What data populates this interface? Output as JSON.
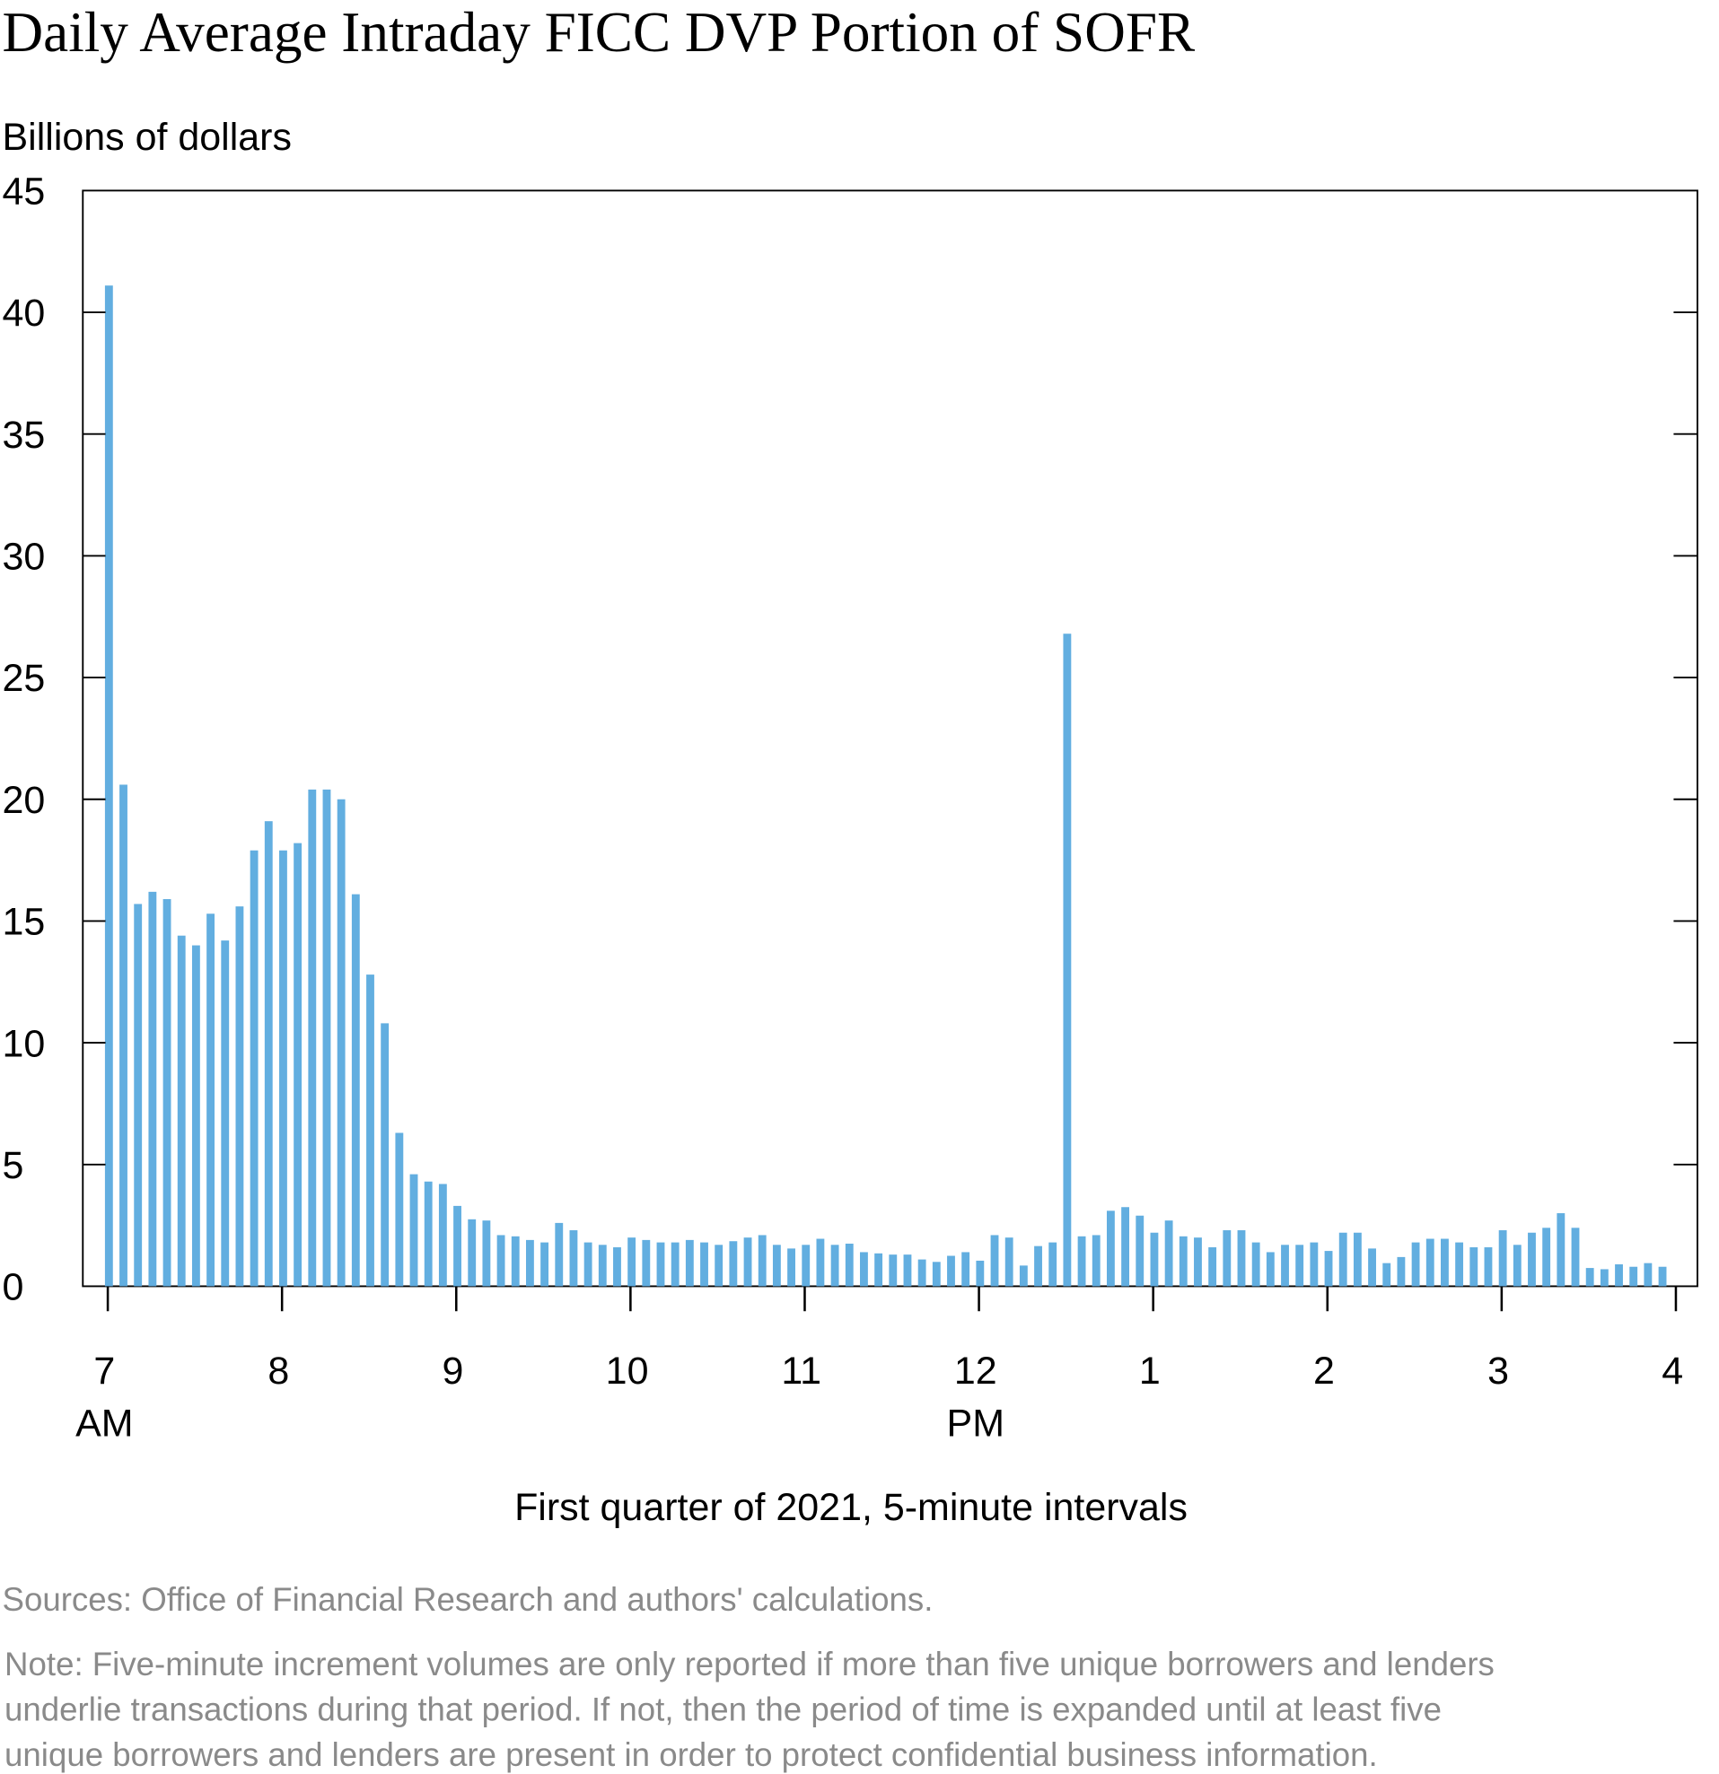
{
  "chart_data": {
    "type": "bar",
    "title": "Daily Average Intraday FICC DVP Portion of SOFR",
    "ylabel": "Billions of dollars",
    "xlabel": "First quarter of 2021, 5-minute intervals",
    "ylim": [
      0,
      45
    ],
    "yticks": [
      0,
      5,
      10,
      15,
      20,
      25,
      30,
      35,
      40,
      45
    ],
    "xticks": [
      {
        "label": "7",
        "sublabel": "AM"
      },
      {
        "label": "8",
        "sublabel": ""
      },
      {
        "label": "9",
        "sublabel": ""
      },
      {
        "label": "10",
        "sublabel": ""
      },
      {
        "label": "11",
        "sublabel": ""
      },
      {
        "label": "12",
        "sublabel": "PM"
      },
      {
        "label": "1",
        "sublabel": ""
      },
      {
        "label": "2",
        "sublabel": ""
      },
      {
        "label": "3",
        "sublabel": ""
      },
      {
        "label": "4",
        "sublabel": ""
      }
    ],
    "grid": false,
    "bar_color": "#62aee0",
    "values": [
      41.1,
      20.6,
      15.7,
      16.2,
      15.9,
      14.4,
      14.0,
      15.3,
      14.2,
      15.6,
      17.9,
      19.1,
      17.9,
      18.2,
      20.4,
      20.4,
      20.0,
      16.1,
      12.8,
      10.8,
      6.3,
      4.6,
      4.3,
      4.2,
      3.3,
      2.75,
      2.7,
      2.1,
      2.05,
      1.9,
      1.8,
      2.6,
      2.3,
      1.8,
      1.7,
      1.6,
      2.0,
      1.9,
      1.8,
      1.8,
      1.9,
      1.8,
      1.7,
      1.85,
      2.0,
      2.1,
      1.7,
      1.55,
      1.7,
      1.95,
      1.7,
      1.75,
      1.4,
      1.35,
      1.3,
      1.3,
      1.1,
      1.0,
      1.25,
      1.4,
      1.05,
      2.1,
      2.0,
      0.85,
      1.65,
      1.8,
      26.8,
      2.05,
      2.1,
      3.1,
      3.25,
      2.9,
      2.2,
      2.7,
      2.05,
      2.0,
      1.6,
      2.3,
      2.3,
      1.8,
      1.4,
      1.7,
      1.7,
      1.8,
      1.45,
      2.2,
      2.2,
      1.55,
      0.95,
      1.2,
      1.8,
      1.95,
      1.95,
      1.8,
      1.6,
      1.6,
      2.3,
      1.7,
      2.2,
      2.4,
      3.0,
      2.4,
      0.75,
      0.7,
      0.9,
      0.8,
      0.95,
      0.8
    ]
  },
  "footer": {
    "sources": "Sources: Office of Financial Research and authors' calculations.",
    "note_lines": [
      "Note:  Five-minute increment volumes are only reported if more than five unique borrowers and lenders",
      "underlie transactions during that period. If not, then the period of time is expanded until at least five",
      "unique borrowers and lenders are present in order to protect confidential business information."
    ]
  }
}
